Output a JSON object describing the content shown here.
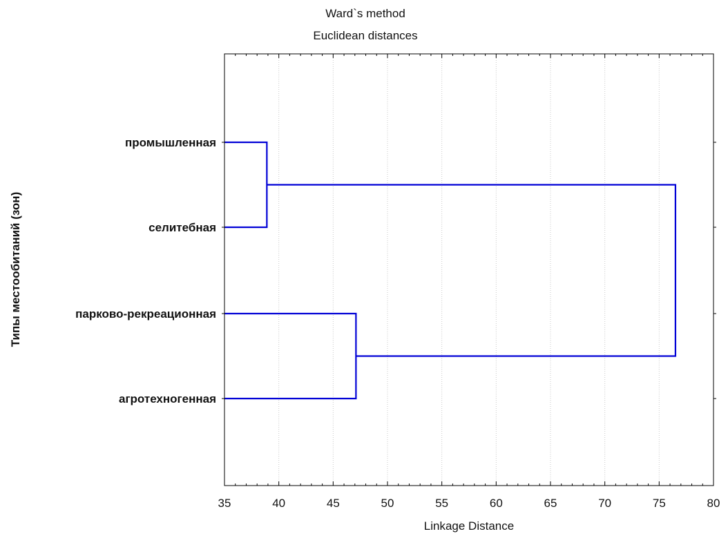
{
  "chart_data": {
    "type": "dendrogram",
    "title": "Ward`s method",
    "subtitle": "Euclidean distances",
    "xlabel": "Linkage Distance",
    "ylabel": "Типы местообитаний (зон)",
    "xlim": [
      35,
      80
    ],
    "x_ticks": [
      "35",
      "40",
      "45",
      "50",
      "55",
      "60",
      "65",
      "70",
      "75",
      "80"
    ],
    "grid": "vertical dotted",
    "leaves": [
      "промышленная",
      "селитебная",
      "парково-рекреационная",
      "агротехногенная"
    ],
    "merges": [
      {
        "left": "промышленная",
        "right": "селитебная",
        "distance": 38.9
      },
      {
        "left": "парково-рекреационная",
        "right": "агротехногенная",
        "distance": 47.1
      },
      {
        "left": "cluster 1",
        "right": "cluster 2",
        "distance": 76.5
      }
    ],
    "line_color": "#0000d6"
  }
}
